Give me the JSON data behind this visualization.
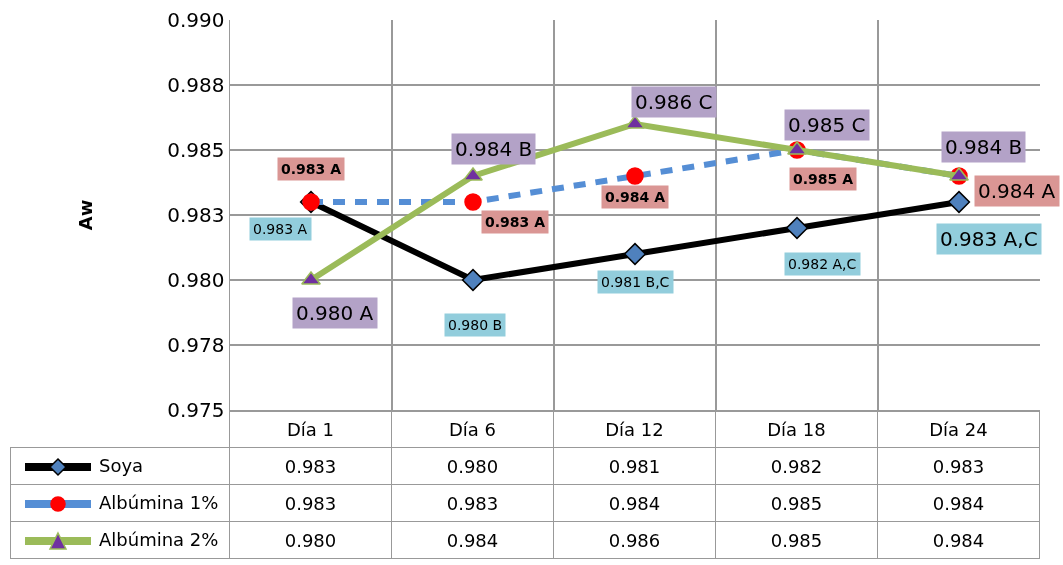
{
  "chart_data": {
    "type": "line",
    "ylabel": "Aw",
    "categories": [
      "Día 1",
      "Día 6",
      "Día 12",
      "Día 18",
      "Día 24"
    ],
    "series": [
      {
        "name": "Soya",
        "color": "#000000",
        "marker": "diamond",
        "line_style": "solid",
        "values": [
          0.983,
          0.98,
          0.981,
          0.982,
          0.983
        ],
        "value_labels": [
          "0.983",
          "0.980",
          "0.981",
          "0.982",
          "0.983"
        ]
      },
      {
        "name": "Albúmina 1%",
        "color": "#558ed5",
        "marker": "circle",
        "line_style": "dashed",
        "values": [
          0.983,
          0.983,
          0.984,
          0.985,
          0.984
        ],
        "value_labels": [
          "0.983",
          "0.983",
          "0.984",
          "0.985",
          "0.984"
        ]
      },
      {
        "name": "Albúmina 2%",
        "color": "#9bbb59",
        "marker": "triangle",
        "line_style": "solid",
        "values": [
          0.98,
          0.984,
          0.986,
          0.985,
          0.984
        ],
        "value_labels": [
          "0.980",
          "0.984",
          "0.986",
          "0.985",
          "0.984"
        ]
      }
    ],
    "annotations": [
      {
        "text": "0.983 A",
        "x": "Día 1",
        "y": 0.983
      },
      {
        "text": "0.980 B",
        "x": "Día 6",
        "y": 0.98
      },
      {
        "text": "0.981 B,C",
        "x": "Día 12",
        "y": 0.981
      },
      {
        "text": "0.982 A,C",
        "x": "Día 18",
        "y": 0.982
      },
      {
        "text": "0.983 A,C",
        "x": "Día 24",
        "y": 0.983
      },
      {
        "text": "0.983 A",
        "x": "Día 1",
        "y": 0.983
      },
      {
        "text": "0.983 A",
        "x": "Día 6",
        "y": 0.983
      },
      {
        "text": "0.984 A",
        "x": "Día 12",
        "y": 0.984
      },
      {
        "text": "0.985 A",
        "x": "Día 18",
        "y": 0.985
      },
      {
        "text": "0.984 A",
        "x": "Día 24",
        "y": 0.984
      },
      {
        "text": "0.980 A",
        "x": "Día 1",
        "y": 0.98
      },
      {
        "text": "0.984 B",
        "x": "Día 6",
        "y": 0.984
      },
      {
        "text": "0.986 C",
        "x": "Día 12",
        "y": 0.986
      },
      {
        "text": "0.985 C",
        "x": "Día 18",
        "y": 0.985
      },
      {
        "text": "0.984 B",
        "x": "Día 24",
        "y": 0.984
      }
    ],
    "ylim": [
      0.975,
      0.99
    ],
    "yticks": [
      0.975,
      {
        "value": 0.9775,
        "label": "0.978"
      },
      {
        "value": 0.98,
        "label": "0.980"
      },
      {
        "value": 0.9825,
        "label": "0.983"
      },
      0.985,
      {
        "value": 0.9875,
        "label": "0.988"
      },
      {
        "value": 0.99,
        "label": "0.990"
      }
    ],
    "grid": true,
    "legend": "bottom"
  }
}
